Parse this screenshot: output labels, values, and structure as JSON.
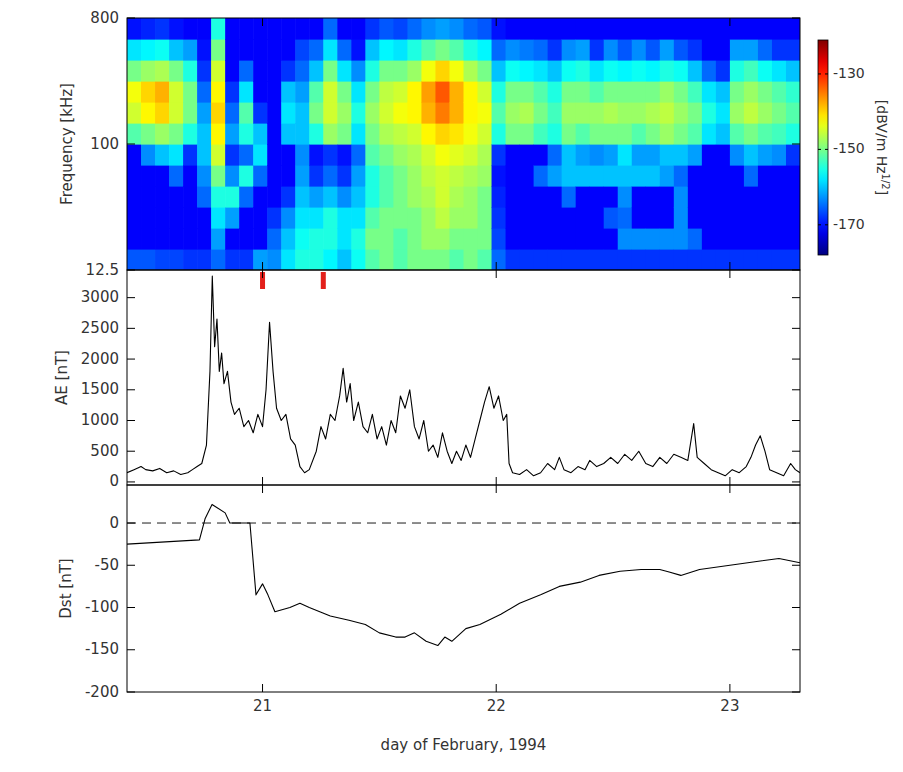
{
  "chart_data": [
    {
      "type": "heatmap",
      "ylabel": "Frequency [kHz]",
      "xlim": [
        20.42,
        23.3
      ],
      "xticks": [
        21,
        22,
        23
      ],
      "ylim": [
        12.5,
        800
      ],
      "yticks": [
        12.5,
        100,
        800
      ],
      "log": "y",
      "tick_labels": "y",
      "x_edges": [
        20.42,
        20.48,
        20.54,
        20.6,
        20.66,
        20.72,
        20.78,
        20.84,
        20.9,
        20.96,
        21.02,
        21.08,
        21.14,
        21.2,
        21.26,
        21.32,
        21.38,
        21.44,
        21.5,
        21.56,
        21.62,
        21.68,
        21.74,
        21.8,
        21.86,
        21.92,
        21.98,
        22.04,
        22.1,
        22.16,
        22.22,
        22.28,
        22.34,
        22.4,
        22.46,
        22.52,
        22.58,
        22.64,
        22.7,
        22.76,
        22.82,
        22.88,
        22.94,
        23.0,
        23.06,
        23.12,
        23.18,
        23.24,
        23.3
      ],
      "y_edges": [
        12.5,
        17.68,
        25,
        35.36,
        50,
        70.71,
        100,
        141.4,
        200,
        282.8,
        400,
        565.7,
        800
      ],
      "cells": [
        [
          -166,
          -171,
          -171,
          -171,
          -171,
          -171,
          -152,
          -145,
          -143,
          -150,
          -158,
          -170
        ],
        [
          -166,
          -171,
          -171,
          -171,
          -171,
          -163,
          -150,
          -142,
          -140,
          -148,
          -157,
          -169
        ],
        [
          -167,
          -171,
          -171,
          -171,
          -171,
          -160,
          -148,
          -140,
          -138,
          -147,
          -156,
          -168
        ],
        [
          -167,
          -171,
          -171,
          -171,
          -165,
          -158,
          -150,
          -145,
          -145,
          -150,
          -160,
          -170
        ],
        [
          -168,
          -171,
          -171,
          -171,
          -171,
          -168,
          -155,
          -150,
          -150,
          -155,
          -162,
          -171
        ],
        [
          -168,
          -171,
          -171,
          -165,
          -163,
          -160,
          -160,
          -162,
          -165,
          -168,
          -170,
          -171
        ],
        [
          -165,
          -162,
          -158,
          -155,
          -150,
          -145,
          -142,
          -140,
          -142,
          -145,
          -150,
          -155
        ],
        [
          -168,
          -171,
          -162,
          -155,
          -163,
          -168,
          -162,
          -165,
          -168,
          -171,
          -171,
          -171
        ],
        [
          -168,
          -171,
          -171,
          -165,
          -155,
          -165,
          -155,
          -152,
          -158,
          -165,
          -171,
          -171
        ],
        [
          -162,
          -171,
          -171,
          -171,
          -165,
          -158,
          -160,
          -168,
          -171,
          -171,
          -171,
          -171
        ],
        [
          -163,
          -165,
          -168,
          -171,
          -171,
          -171,
          -171,
          -171,
          -171,
          -171,
          -171,
          -171
        ],
        [
          -158,
          -160,
          -163,
          -168,
          -171,
          -171,
          -160,
          -158,
          -160,
          -168,
          -171,
          -171
        ],
        [
          -155,
          -156,
          -158,
          -160,
          -162,
          -163,
          -160,
          -160,
          -162,
          -165,
          -167,
          -171
        ],
        [
          -155,
          -155,
          -158,
          -162,
          -168,
          -170,
          -155,
          -150,
          -152,
          -160,
          -165,
          -171
        ],
        [
          -157,
          -155,
          -155,
          -160,
          -165,
          -168,
          -148,
          -145,
          -145,
          -150,
          -158,
          -165
        ],
        [
          -160,
          -158,
          -158,
          -163,
          -168,
          -170,
          -150,
          -148,
          -150,
          -158,
          -165,
          -171
        ],
        [
          -156,
          -155,
          -158,
          -160,
          -162,
          -165,
          -158,
          -155,
          -158,
          -163,
          -170,
          -171
        ],
        [
          -152,
          -150,
          -152,
          -155,
          -155,
          -152,
          -150,
          -148,
          -150,
          -155,
          -160,
          -168
        ],
        [
          -150,
          -150,
          -150,
          -152,
          -152,
          -150,
          -147,
          -145,
          -146,
          -150,
          -157,
          -166
        ],
        [
          -152,
          -152,
          -150,
          -150,
          -150,
          -148,
          -146,
          -143,
          -145,
          -150,
          -158,
          -167
        ],
        [
          -150,
          -150,
          -150,
          -148,
          -148,
          -147,
          -145,
          -142,
          -142,
          -148,
          -155,
          -165
        ],
        [
          -150,
          -148,
          -148,
          -147,
          -146,
          -145,
          -142,
          -138,
          -137,
          -143,
          -152,
          -163
        ],
        [
          -150,
          -148,
          -146,
          -145,
          -145,
          -143,
          -140,
          -135,
          -133,
          -140,
          -150,
          -162
        ],
        [
          -152,
          -150,
          -148,
          -147,
          -146,
          -144,
          -141,
          -138,
          -138,
          -143,
          -152,
          -163
        ],
        [
          -150,
          -150,
          -148,
          -148,
          -147,
          -145,
          -143,
          -142,
          -142,
          -147,
          -155,
          -165
        ],
        [
          -152,
          -150,
          -150,
          -150,
          -148,
          -147,
          -145,
          -143,
          -145,
          -150,
          -157,
          -166
        ],
        [
          -165,
          -167,
          -168,
          -169,
          -170,
          -168,
          -155,
          -152,
          -155,
          -160,
          -165,
          -170
        ],
        [
          -168,
          -171,
          -171,
          -171,
          -171,
          -171,
          -150,
          -148,
          -150,
          -156,
          -163,
          -171
        ],
        [
          -168,
          -171,
          -171,
          -171,
          -171,
          -171,
          -150,
          -147,
          -150,
          -157,
          -164,
          -171
        ],
        [
          -168,
          -171,
          -171,
          -171,
          -165,
          -171,
          -153,
          -150,
          -152,
          -158,
          -165,
          -171
        ],
        [
          -168,
          -171,
          -171,
          -171,
          -162,
          -165,
          -155,
          -153,
          -155,
          -160,
          -168,
          -171
        ],
        [
          -168,
          -171,
          -171,
          -165,
          -160,
          -160,
          -150,
          -148,
          -150,
          -156,
          -163,
          -171
        ],
        [
          -168,
          -171,
          -171,
          -171,
          -160,
          -162,
          -152,
          -148,
          -150,
          -155,
          -162,
          -171
        ],
        [
          -168,
          -171,
          -171,
          -171,
          -160,
          -163,
          -150,
          -148,
          -152,
          -158,
          -168,
          -171
        ],
        [
          -168,
          -171,
          -166,
          -171,
          -160,
          -162,
          -150,
          -147,
          -150,
          -156,
          -163,
          -171
        ],
        [
          -168,
          -163,
          -165,
          -163,
          -160,
          -158,
          -150,
          -148,
          -150,
          -157,
          -166,
          -171
        ],
        [
          -168,
          -163,
          -171,
          -171,
          -160,
          -162,
          -152,
          -148,
          -150,
          -156,
          -163,
          -171
        ],
        [
          -168,
          -163,
          -171,
          -171,
          -160,
          -162,
          -150,
          -147,
          -150,
          -157,
          -166,
          -171
        ],
        [
          -168,
          -163,
          -171,
          -171,
          -162,
          -160,
          -148,
          -146,
          -148,
          -155,
          -162,
          -171
        ],
        [
          -168,
          -163,
          -163,
          -163,
          -165,
          -160,
          -150,
          -148,
          -150,
          -156,
          -166,
          -171
        ],
        [
          -168,
          -165,
          -171,
          -171,
          -171,
          -162,
          -152,
          -150,
          -153,
          -160,
          -168,
          -171
        ],
        [
          -168,
          -171,
          -171,
          -171,
          -171,
          -171,
          -158,
          -155,
          -158,
          -165,
          -171,
          -171
        ],
        [
          -168,
          -171,
          -171,
          -171,
          -171,
          -171,
          -160,
          -158,
          -160,
          -168,
          -171,
          -171
        ],
        [
          -168,
          -171,
          -171,
          -171,
          -171,
          -163,
          -152,
          -148,
          -150,
          -155,
          -162,
          -171
        ],
        [
          -168,
          -171,
          -171,
          -171,
          -165,
          -160,
          -150,
          -146,
          -148,
          -153,
          -162,
          -171
        ],
        [
          -168,
          -171,
          -171,
          -171,
          -171,
          -162,
          -152,
          -148,
          -150,
          -156,
          -165,
          -171
        ],
        [
          -168,
          -171,
          -171,
          -171,
          -171,
          -163,
          -153,
          -150,
          -152,
          -158,
          -168,
          -171
        ],
        [
          -168,
          -171,
          -171,
          -171,
          -171,
          -168,
          -155,
          -152,
          -154,
          -160,
          -168,
          -171
        ]
      ],
      "clim": [
        -178,
        -121
      ],
      "colorbar_ticks": [
        -130,
        -150,
        -170
      ],
      "colorbar_label": [
        "[dBV/m Hz",
        "1/2",
        "]"
      ]
    },
    {
      "type": "line",
      "ylabel": "AE [nT]",
      "xlim": [
        20.42,
        23.3
      ],
      "xticks": [
        21,
        22,
        23
      ],
      "ylim": [
        -50,
        3450
      ],
      "yticks": [
        0,
        500,
        1000,
        1500,
        2000,
        2500,
        3000
      ],
      "tick_labels": "y",
      "color": "#000000",
      "markers": [
        21.0,
        21.26
      ],
      "x": [
        20.42,
        20.45,
        20.48,
        20.5,
        20.53,
        20.56,
        20.59,
        20.62,
        20.65,
        20.68,
        20.7,
        20.72,
        20.74,
        20.76,
        20.775,
        20.785,
        20.795,
        20.805,
        20.815,
        20.825,
        20.835,
        20.85,
        20.865,
        20.88,
        20.9,
        20.92,
        20.94,
        20.96,
        20.98,
        21.0,
        21.015,
        21.03,
        21.045,
        21.06,
        21.08,
        21.1,
        21.12,
        21.14,
        21.16,
        21.18,
        21.2,
        21.23,
        21.25,
        21.27,
        21.29,
        21.31,
        21.33,
        21.345,
        21.36,
        21.375,
        21.39,
        21.41,
        21.43,
        21.45,
        21.47,
        21.49,
        21.51,
        21.53,
        21.55,
        21.57,
        21.59,
        21.61,
        21.63,
        21.65,
        21.67,
        21.69,
        21.71,
        21.73,
        21.75,
        21.77,
        21.79,
        21.81,
        21.83,
        21.85,
        21.87,
        21.89,
        21.91,
        21.93,
        21.95,
        21.97,
        21.99,
        22.01,
        22.03,
        22.045,
        22.055,
        22.07,
        22.1,
        22.13,
        22.16,
        22.19,
        22.22,
        22.25,
        22.27,
        22.29,
        22.32,
        22.35,
        22.38,
        22.4,
        22.43,
        22.46,
        22.49,
        22.52,
        22.55,
        22.58,
        22.61,
        22.64,
        22.67,
        22.7,
        22.73,
        22.76,
        22.79,
        22.82,
        22.845,
        22.86,
        22.89,
        22.92,
        22.95,
        22.98,
        23.01,
        23.04,
        23.07,
        23.09,
        23.11,
        23.13,
        23.15,
        23.17,
        23.2,
        23.23,
        23.26,
        23.28,
        23.3
      ],
      "values": [
        150,
        200,
        250,
        200,
        180,
        220,
        150,
        180,
        120,
        150,
        200,
        250,
        300,
        600,
        1800,
        3350,
        2200,
        2650,
        1800,
        2100,
        1600,
        1800,
        1300,
        1100,
        1200,
        900,
        1000,
        800,
        1100,
        900,
        1500,
        2600,
        1800,
        1200,
        1000,
        1100,
        700,
        600,
        250,
        150,
        200,
        500,
        900,
        700,
        1100,
        1000,
        1400,
        1850,
        1300,
        1600,
        1000,
        1300,
        900,
        800,
        1100,
        700,
        900,
        600,
        1000,
        800,
        1400,
        1200,
        1500,
        900,
        700,
        1000,
        500,
        600,
        400,
        800,
        500,
        300,
        500,
        350,
        600,
        400,
        700,
        1000,
        1300,
        1550,
        1200,
        1400,
        1000,
        1100,
        300,
        150,
        120,
        200,
        100,
        150,
        300,
        200,
        400,
        200,
        150,
        250,
        200,
        350,
        250,
        300,
        400,
        300,
        450,
        350,
        500,
        300,
        250,
        400,
        300,
        450,
        400,
        350,
        950,
        400,
        300,
        200,
        150,
        100,
        200,
        150,
        250,
        400,
        600,
        750,
        500,
        200,
        150,
        100,
        300,
        200,
        150
      ]
    },
    {
      "type": "line",
      "ylabel": "Dst [nT]",
      "xlabel": "day of February, 1994",
      "xlim": [
        20.42,
        23.3
      ],
      "xticks": [
        21,
        22,
        23
      ],
      "ylim": [
        -200,
        45
      ],
      "yticks": [
        -200,
        -150,
        -100,
        -50,
        0
      ],
      "color": "#000000",
      "reference_line": 0,
      "x": [
        20.42,
        20.73,
        20.754,
        20.784,
        20.84,
        20.86,
        20.946,
        20.972,
        21.0,
        21.023,
        21.053,
        21.117,
        21.16,
        21.2,
        21.29,
        21.37,
        21.44,
        21.5,
        21.57,
        21.61,
        21.65,
        21.7,
        21.75,
        21.78,
        21.81,
        21.87,
        21.93,
        22.02,
        22.1,
        22.19,
        22.27,
        22.36,
        22.44,
        22.53,
        22.62,
        22.7,
        22.74,
        22.79,
        22.87,
        23.0,
        23.13,
        23.21,
        23.3
      ],
      "values": [
        -25,
        -20,
        5,
        22,
        12,
        0,
        0,
        -85,
        -72,
        -85,
        -105,
        -100,
        -95,
        -100,
        -110,
        -115,
        -120,
        -130,
        -135,
        -135,
        -130,
        -140,
        -145,
        -135,
        -140,
        -125,
        -120,
        -108,
        -95,
        -85,
        -75,
        -70,
        -62,
        -57,
        -55,
        -55,
        -58,
        -62,
        -55,
        -50,
        -45,
        -42,
        -47
      ]
    }
  ]
}
